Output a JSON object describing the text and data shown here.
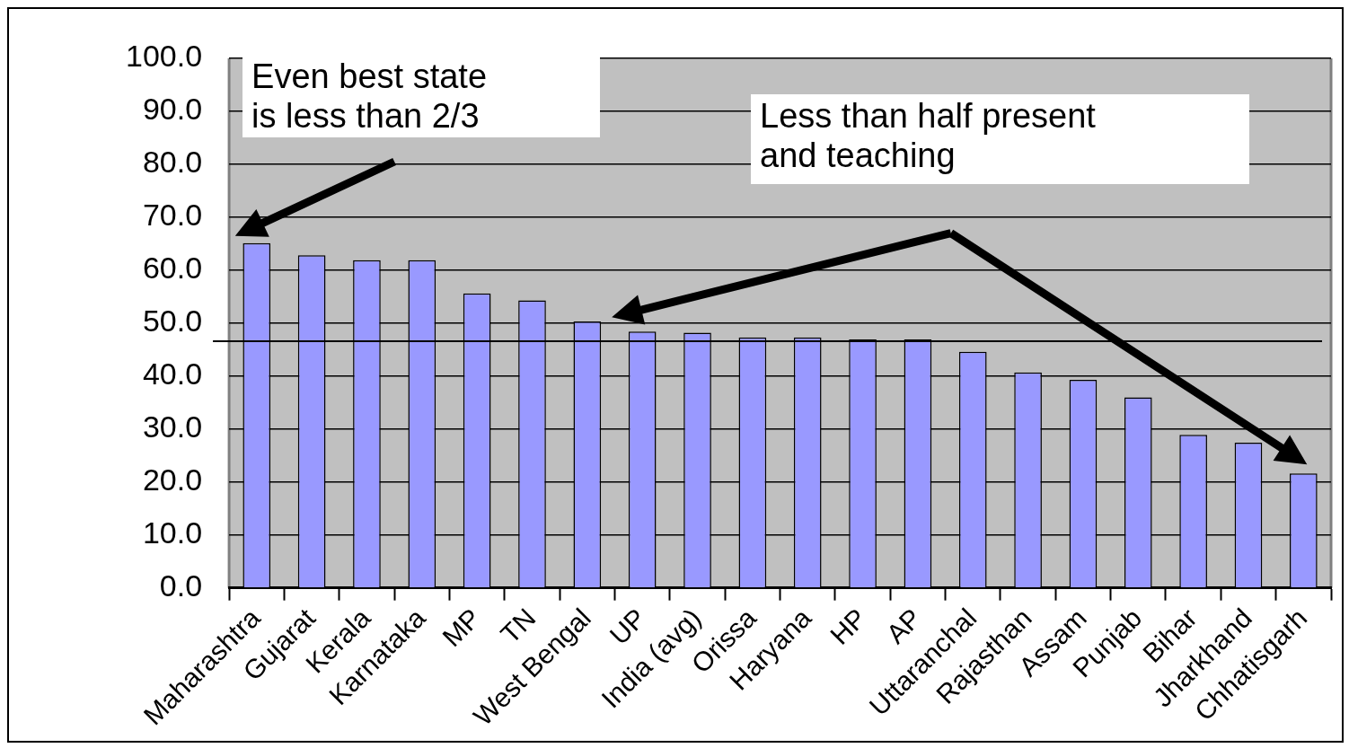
{
  "chart_data": {
    "type": "bar",
    "categories": [
      "Maharashtra",
      "Gujarat",
      "Kerala",
      "Karnataka",
      "MP",
      "TN",
      "West Bengal",
      "UP",
      "India (avg)",
      "Orissa",
      "Haryana",
      "HP",
      "AP",
      "Uttaranchal",
      "Rajasthan",
      "Assam",
      "Punjab",
      "Bihar",
      "Jharkhand",
      "Chhatisgarh"
    ],
    "values": [
      65.1,
      62.8,
      61.9,
      61.9,
      55.6,
      54.3,
      50.3,
      48.4,
      48.2,
      47.3,
      47.3,
      46.9,
      46.9,
      44.6,
      40.7,
      39.3,
      36.0,
      28.9,
      27.4,
      21.6
    ],
    "color": "#9999ff",
    "ylim": [
      0,
      100
    ],
    "yticks": [
      {
        "value": 0,
        "label": "0.0"
      },
      {
        "value": 10,
        "label": "10.0"
      },
      {
        "value": 20,
        "label": "20.0"
      },
      {
        "value": 30,
        "label": "30.0"
      },
      {
        "value": 40,
        "label": "40.0"
      },
      {
        "value": 50,
        "label": "50.0"
      },
      {
        "value": 60,
        "label": "60.0"
      },
      {
        "value": 70,
        "label": "70.0"
      },
      {
        "value": 80,
        "label": "80.0"
      },
      {
        "value": 90,
        "label": "90.0"
      },
      {
        "value": 100,
        "label": "100.0"
      }
    ],
    "grid": "y",
    "legend": false,
    "ref_lines": [
      {
        "axis": "y",
        "value": 46.6,
        "color": "#000000"
      }
    ],
    "annotations": [
      "Even best state\nis less than 2/3",
      "Less than half present\nand teaching"
    ]
  }
}
